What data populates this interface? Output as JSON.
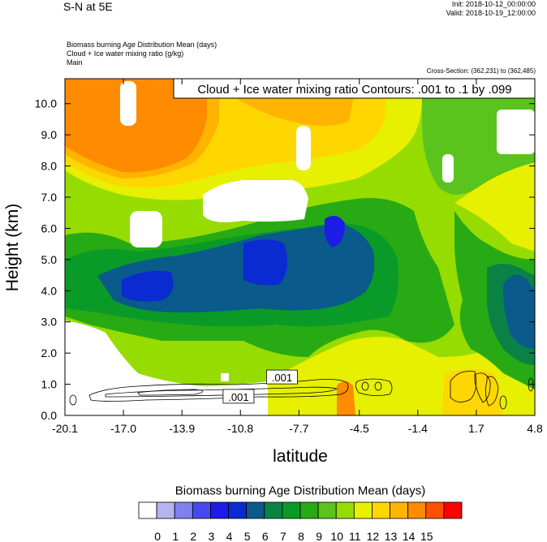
{
  "header": {
    "title": "S-N at 5E",
    "init": "Init: 2018-10-12_00:00:00",
    "valid": "Valid: 2018-10-19_12:00:00",
    "field1": "Biomass burning Age Distribution Mean   (days)",
    "field2": "Cloud + Ice water mixing ratio   (g/kg)",
    "field3": "Main",
    "cross_section": "Cross-Section: (362,231) to (362,485)"
  },
  "chart_data": {
    "type": "heatmap",
    "title": "Cloud + Ice water mixing ratio Contours: .001 to .1 by .099",
    "xlabel": "latitude",
    "ylabel": "Height (km)",
    "xlim": [
      -20.1,
      4.8
    ],
    "ylim": [
      0.0,
      10.8
    ],
    "x_ticks": [
      "-20.1",
      "-17.0",
      "-13.9",
      "-10.8",
      "-7.7",
      "-4.5",
      "-1.4",
      "1.7",
      "4.8"
    ],
    "y_ticks": [
      "0.0",
      "1.0",
      "2.0",
      "3.0",
      "4.0",
      "5.0",
      "6.0",
      "7.0",
      "8.0",
      "9.0",
      "10.0"
    ],
    "contour_labels": [
      ".001",
      ".001"
    ],
    "colorbar": {
      "title": "Biomass burning Age Distribution Mean  (days)",
      "labels": [
        "0",
        "1",
        "2",
        "3",
        "4",
        "5",
        "6",
        "7",
        "8",
        "9",
        "10",
        "11",
        "12",
        "13",
        "14",
        "15"
      ],
      "colors": [
        "#ffffff",
        "#b4b4f0",
        "#8080f0",
        "#4848f0",
        "#1c1ce6",
        "#0a2ad2",
        "#0a5a8c",
        "#0a8246",
        "#0a9a28",
        "#28aa14",
        "#5ac31e",
        "#96dc00",
        "#e6f000",
        "#ffd700",
        "#ffb400",
        "#ff8c00",
        "#ff5000",
        "#ff0000"
      ]
    }
  }
}
